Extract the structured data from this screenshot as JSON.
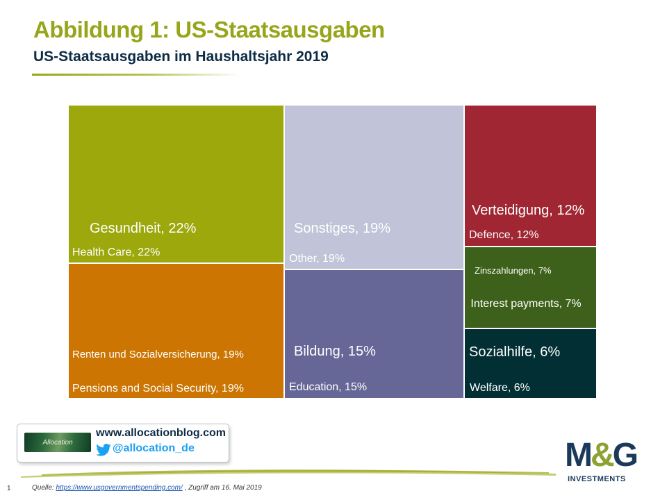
{
  "header": {
    "title": "Abbildung 1: US-Staatsausgaben",
    "subtitle": "US-Staatsausgaben im Haushaltsjahr 2019"
  },
  "chart_data": {
    "type": "treemap",
    "title": "US-Staatsausgaben im Haushaltsjahr 2019",
    "unit": "%",
    "items": [
      {
        "label_de": "Gesundheit, 22%",
        "label_en": "Health Care, 22%",
        "value": 22,
        "color": "#9ca80b"
      },
      {
        "label_de": "Renten und Sozialversicherung, 19%",
        "label_en": "Pensions and Social Security, 19%",
        "value": 19,
        "color": "#cc7503"
      },
      {
        "label_de": "Sonstiges, 19%",
        "label_en": "Other, 19%",
        "value": 19,
        "color": "#c1c3d9"
      },
      {
        "label_de": "Bildung, 15%",
        "label_en": "Education, 15%",
        "value": 15,
        "color": "#666797"
      },
      {
        "label_de": "Verteidigung, 12%",
        "label_en": "Defence, 12%",
        "value": 12,
        "color": "#9f2632"
      },
      {
        "label_de": "Zinszahlungen, 7%",
        "label_en": "Interest payments, 7%",
        "value": 7,
        "color": "#3d611a"
      },
      {
        "label_de": "Sozialhilfe, 6%",
        "label_en": "Welfare, 6%",
        "value": 6,
        "color": "#022f34"
      }
    ]
  },
  "branding": {
    "alloc_logo_text": "Allocation",
    "blog_url": "www.allocationblog.com",
    "twitter_handle": "@allocation_de",
    "mg_main": "M",
    "mg_amp": "&",
    "mg_g": "G",
    "mg_sub": "INVESTMENTS",
    "alloc_color": "#2e6b3d",
    "mg_color": "#1b3a5a",
    "twitter_color": "#1da1f2"
  },
  "footer": {
    "page_number": "1",
    "source_prefix": "Quelle: ",
    "source_link": "https://www.usgovernmentspending.com/",
    "source_suffix": " , Zugriff am 16. Mai 2019"
  }
}
